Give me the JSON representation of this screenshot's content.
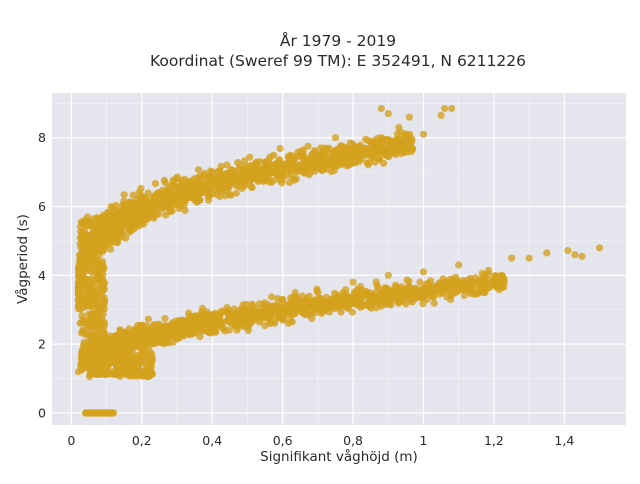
{
  "chart_data": {
    "type": "scatter",
    "title_line1": "År 1979 - 2019",
    "title_line2": "Koordinat (Sweref 99 TM): E 352491, N 6211226",
    "xlabel": "Signifikant våghöjd (m)",
    "ylabel": "Vågperiod (s)",
    "xlim": [
      -0.055,
      1.575
    ],
    "ylim": [
      -0.35,
      9.3
    ],
    "x_ticks": [
      0,
      0.2,
      0.4,
      0.6,
      0.8,
      1.0,
      1.2,
      1.4
    ],
    "x_tick_labels": [
      "0",
      "0,2",
      "0,4",
      "0,6",
      "0,8",
      "1",
      "1,2",
      "1,4"
    ],
    "y_ticks": [
      0,
      2,
      4,
      6,
      8
    ],
    "y_tick_labels": [
      "0",
      "2",
      "4",
      "6",
      "8"
    ],
    "grid": true,
    "marker_color": "#D4A21E",
    "background_color": "#E5E5EE",
    "groups": [
      {
        "name": "long-period band",
        "x_range": [
          0.02,
          1.08
        ],
        "y_center": [
          3.3,
          8.2
        ],
        "note": "T increasing with Hs, ~4 s at Hs≈0.05 to ~8.5 s at Hs≈1.05"
      },
      {
        "name": "short-period band",
        "x_range": [
          0.03,
          1.5
        ],
        "y_center": [
          1.3,
          4.6
        ],
        "note": "T increasing with Hs, ~1.3 s at Hs≈0.05 to ~4.6 s at Hs≈1.5"
      },
      {
        "name": "zero-period cluster",
        "x_range": [
          0.04,
          0.12
        ],
        "y_center": [
          0,
          0
        ]
      }
    ],
    "points": [
      {
        "x": 0.88,
        "y": 8.85
      },
      {
        "x": 0.9,
        "y": 8.7
      },
      {
        "x": 0.96,
        "y": 8.6
      },
      {
        "x": 1.06,
        "y": 8.85
      },
      {
        "x": 1.08,
        "y": 8.85
      },
      {
        "x": 1.05,
        "y": 8.65
      },
      {
        "x": 0.93,
        "y": 8.3
      },
      {
        "x": 1.0,
        "y": 8.1
      },
      {
        "x": 0.75,
        "y": 8.0
      },
      {
        "x": 0.65,
        "y": 7.6
      },
      {
        "x": 0.55,
        "y": 7.3
      },
      {
        "x": 0.45,
        "y": 7.0
      },
      {
        "x": 0.35,
        "y": 6.6
      },
      {
        "x": 0.25,
        "y": 6.2
      },
      {
        "x": 0.15,
        "y": 5.6
      },
      {
        "x": 0.08,
        "y": 4.6
      },
      {
        "x": 0.05,
        "y": 3.5
      },
      {
        "x": 0.06,
        "y": 2.5
      },
      {
        "x": 1.5,
        "y": 4.8
      },
      {
        "x": 1.45,
        "y": 4.55
      },
      {
        "x": 1.41,
        "y": 4.72
      },
      {
        "x": 1.43,
        "y": 4.6
      },
      {
        "x": 1.35,
        "y": 4.65
      },
      {
        "x": 1.3,
        "y": 4.5
      },
      {
        "x": 1.25,
        "y": 4.5
      },
      {
        "x": 1.1,
        "y": 4.3
      },
      {
        "x": 1.0,
        "y": 4.1
      },
      {
        "x": 0.9,
        "y": 4.0
      },
      {
        "x": 0.8,
        "y": 3.8
      },
      {
        "x": 0.7,
        "y": 3.5
      },
      {
        "x": 0.6,
        "y": 3.3
      },
      {
        "x": 0.5,
        "y": 3.0
      },
      {
        "x": 0.4,
        "y": 2.8
      },
      {
        "x": 0.3,
        "y": 2.5
      },
      {
        "x": 0.2,
        "y": 2.2
      },
      {
        "x": 0.1,
        "y": 1.8
      },
      {
        "x": 0.05,
        "y": 1.5
      },
      {
        "x": 0.02,
        "y": 1.2
      },
      {
        "x": 0.04,
        "y": 0
      },
      {
        "x": 0.06,
        "y": 0
      },
      {
        "x": 0.08,
        "y": 0
      },
      {
        "x": 0.1,
        "y": 0
      },
      {
        "x": 0.12,
        "y": 0
      }
    ]
  }
}
